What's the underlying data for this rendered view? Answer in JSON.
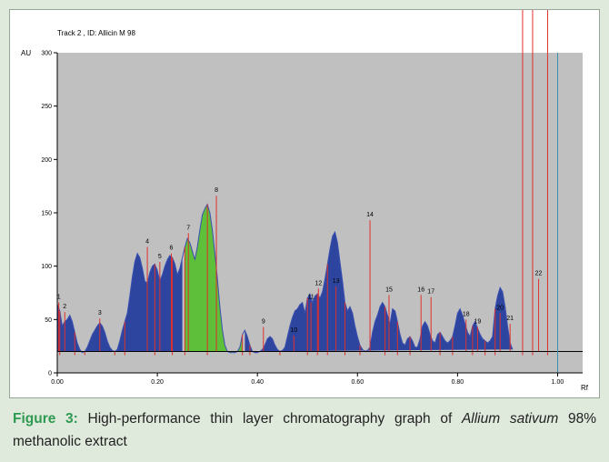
{
  "figure": {
    "label": "Figure 3:",
    "caption_part1": " High-performance thin layer chromatography graph of ",
    "caption_species": "Allium sativum",
    "caption_part2": " 98% methanolic extract"
  },
  "chart_data": {
    "type": "area",
    "title": "Track  2 , ID: Allicin M 98",
    "xlabel": "Rf",
    "ylabel": "AU",
    "xlim": [
      0.0,
      1.05
    ],
    "ylim": [
      0,
      300
    ],
    "xticks": [
      0.0,
      0.2,
      0.4,
      0.6,
      0.8,
      1.0
    ],
    "xtick_labels": [
      "0.00",
      "0.20",
      "0.40",
      "0.60",
      "0.80",
      "1.00"
    ],
    "yticks": [
      0,
      50,
      100,
      150,
      200,
      250,
      300
    ],
    "ytick_labels": [
      "0",
      "50",
      "100",
      "150",
      "200",
      "250",
      "300"
    ],
    "grid": false,
    "baseline": 20,
    "end_marker_rf": 1.0,
    "colors": {
      "plot_bg": "#c0c0c0",
      "peak_fill": "#2e45a0",
      "highlight_fill": "#5dbf3a",
      "outline": "#3a4fb0",
      "marker": "#e0302a",
      "end_line": "#3a8fb0",
      "baseline": "#000000"
    },
    "trace": {
      "rf": [
        0.0,
        0.005,
        0.01,
        0.015,
        0.02,
        0.025,
        0.03,
        0.035,
        0.04,
        0.045,
        0.05,
        0.055,
        0.06,
        0.065,
        0.07,
        0.075,
        0.08,
        0.085,
        0.09,
        0.095,
        0.1,
        0.105,
        0.11,
        0.115,
        0.12,
        0.125,
        0.13,
        0.135,
        0.14,
        0.145,
        0.15,
        0.155,
        0.16,
        0.165,
        0.17,
        0.175,
        0.18,
        0.185,
        0.19,
        0.195,
        0.2,
        0.205,
        0.21,
        0.215,
        0.22,
        0.225,
        0.23,
        0.235,
        0.24,
        0.245,
        0.25,
        0.255,
        0.26,
        0.265,
        0.27,
        0.275,
        0.28,
        0.285,
        0.29,
        0.295,
        0.3,
        0.305,
        0.31,
        0.315,
        0.32,
        0.325,
        0.33,
        0.335,
        0.34,
        0.345,
        0.35,
        0.355,
        0.36,
        0.365,
        0.37,
        0.375,
        0.38,
        0.385,
        0.39,
        0.395,
        0.4,
        0.405,
        0.41,
        0.415,
        0.42,
        0.425,
        0.43,
        0.435,
        0.44,
        0.445,
        0.45,
        0.455,
        0.46,
        0.465,
        0.47,
        0.475,
        0.48,
        0.485,
        0.49,
        0.495,
        0.5,
        0.505,
        0.51,
        0.515,
        0.52,
        0.525,
        0.53,
        0.535,
        0.54,
        0.545,
        0.55,
        0.555,
        0.56,
        0.565,
        0.57,
        0.575,
        0.58,
        0.585,
        0.59,
        0.595,
        0.6,
        0.605,
        0.61,
        0.615,
        0.62,
        0.625,
        0.63,
        0.635,
        0.64,
        0.645,
        0.65,
        0.655,
        0.66,
        0.665,
        0.67,
        0.675,
        0.68,
        0.685,
        0.69,
        0.695,
        0.7,
        0.705,
        0.71,
        0.715,
        0.72,
        0.725,
        0.73,
        0.735,
        0.74,
        0.745,
        0.75,
        0.755,
        0.76,
        0.765,
        0.77,
        0.775,
        0.78,
        0.785,
        0.79,
        0.795,
        0.8,
        0.805,
        0.81,
        0.815,
        0.82,
        0.825,
        0.83,
        0.835,
        0.84,
        0.845,
        0.85,
        0.855,
        0.86,
        0.865,
        0.87,
        0.875,
        0.88,
        0.885,
        0.89,
        0.895,
        0.9,
        0.905,
        0.91,
        0.915,
        0.92,
        0.925,
        0.93,
        0.935,
        0.94,
        0.945,
        0.95,
        0.955,
        0.96,
        0.965,
        0.97,
        0.975,
        0.98,
        0.985,
        0.99,
        0.995,
        1.0
      ],
      "au": [
        64,
        58,
        44,
        48,
        50,
        54,
        48,
        38,
        28,
        22,
        19,
        20,
        24,
        30,
        36,
        40,
        44,
        47,
        44,
        38,
        30,
        24,
        21,
        20,
        22,
        30,
        40,
        48,
        56,
        72,
        90,
        104,
        112,
        108,
        98,
        86,
        84,
        94,
        100,
        102,
        96,
        86,
        92,
        100,
        106,
        110,
        108,
        102,
        92,
        98,
        108,
        118,
        126,
        122,
        114,
        106,
        118,
        134,
        148,
        154,
        158,
        150,
        134,
        112,
        88,
        62,
        40,
        26,
        20,
        19,
        19,
        19,
        20,
        24,
        36,
        40,
        34,
        26,
        20,
        19,
        19,
        20,
        22,
        26,
        32,
        34,
        32,
        26,
        22,
        20,
        21,
        24,
        34,
        44,
        52,
        58,
        60,
        64,
        66,
        56,
        70,
        74,
        66,
        72,
        74,
        70,
        76,
        88,
        102,
        116,
        128,
        132,
        122,
        104,
        86,
        66,
        58,
        62,
        56,
        44,
        34,
        26,
        22,
        20,
        21,
        24,
        38,
        48,
        54,
        62,
        66,
        62,
        54,
        46,
        60,
        58,
        48,
        36,
        28,
        26,
        32,
        34,
        30,
        24,
        24,
        32,
        44,
        48,
        44,
        36,
        30,
        28,
        36,
        38,
        34,
        30,
        28,
        30,
        34,
        44,
        56,
        60,
        54,
        46,
        38,
        34,
        44,
        48,
        42,
        36,
        32,
        30,
        28,
        30,
        34,
        60,
        72,
        80,
        76,
        62,
        44,
        28,
        22
      ]
    },
    "peaks": [
      {
        "id": "1",
        "rf": 0.003,
        "au": 66
      },
      {
        "id": "2",
        "rf": 0.015,
        "au": 57
      },
      {
        "id": "3",
        "rf": 0.085,
        "au": 51
      },
      {
        "id": "4",
        "rf": 0.18,
        "au": 118
      },
      {
        "id": "5",
        "rf": 0.205,
        "au": 104
      },
      {
        "id": "6",
        "rf": 0.228,
        "au": 112
      },
      {
        "id": "7",
        "rf": 0.262,
        "au": 131
      },
      {
        "id": "8",
        "rf": 0.318,
        "au": 166
      },
      {
        "id": "9",
        "rf": 0.412,
        "au": 43
      },
      {
        "id": "10",
        "rf": 0.473,
        "au": 35
      },
      {
        "id": "11",
        "rf": 0.507,
        "au": 66
      },
      {
        "id": "12",
        "rf": 0.522,
        "au": 79
      },
      {
        "id": "13",
        "rf": 0.557,
        "au": 81
      },
      {
        "id": "14",
        "rf": 0.625,
        "au": 143
      },
      {
        "id": "15",
        "rf": 0.663,
        "au": 73
      },
      {
        "id": "16",
        "rf": 0.727,
        "au": 73
      },
      {
        "id": "17",
        "rf": 0.747,
        "au": 71
      },
      {
        "id": "18",
        "rf": 0.817,
        "au": 50
      },
      {
        "id": "19",
        "rf": 0.84,
        "au": 43
      },
      {
        "id": "20",
        "rf": 0.885,
        "au": 56
      },
      {
        "id": "21",
        "rf": 0.905,
        "au": 46
      },
      {
        "id": "22",
        "rf": 0.962,
        "au": 88
      }
    ],
    "highlighted_range": [
      0.255,
      0.37
    ],
    "boundary_rf": [
      0.005,
      0.035,
      0.055,
      0.115,
      0.135,
      0.195,
      0.23,
      0.255,
      0.3,
      0.37,
      0.385,
      0.445,
      0.5,
      0.52,
      0.54,
      0.575,
      0.605,
      0.655,
      0.68,
      0.705,
      0.765,
      0.79,
      0.83,
      0.855,
      0.875,
      0.93,
      0.95,
      0.98
    ]
  }
}
